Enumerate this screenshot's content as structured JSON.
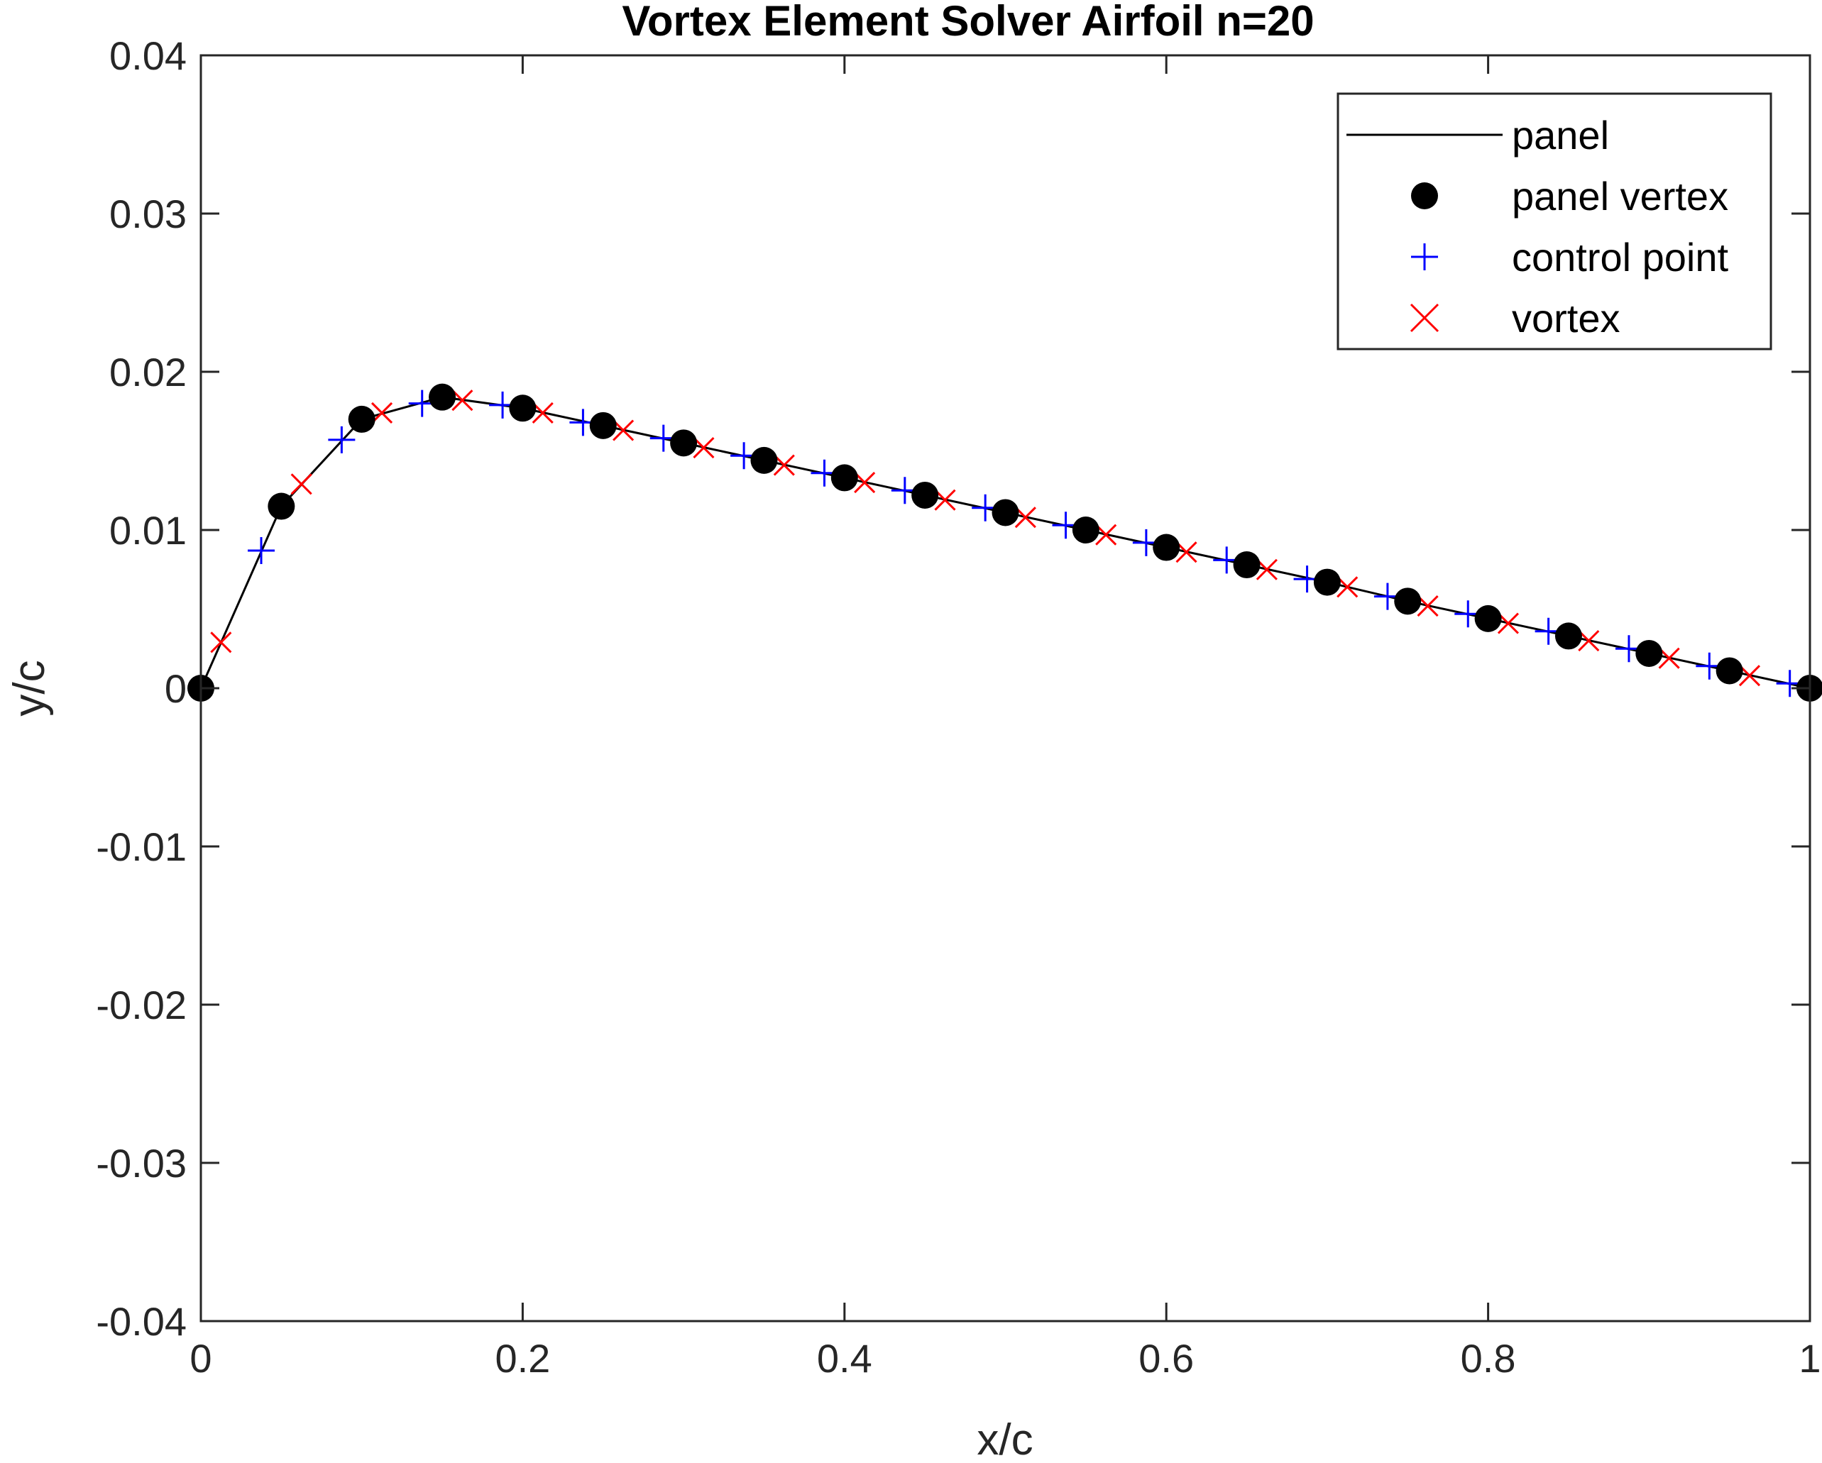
{
  "chart_data": {
    "type": "line",
    "title": "Vortex Element Solver Airfoil n=20",
    "xlabel": "x/c",
    "ylabel": "y/c",
    "xlim": [
      0,
      1
    ],
    "ylim": [
      -0.04,
      0.04
    ],
    "xticks": [
      0,
      0.2,
      0.4,
      0.6,
      0.8,
      1
    ],
    "xtick_labels": [
      "0",
      "0.2",
      "0.4",
      "0.6",
      "0.8",
      "1"
    ],
    "yticks": [
      0.04,
      0.03,
      0.02,
      0.01,
      0,
      -0.01,
      -0.02,
      -0.03,
      -0.04
    ],
    "ytick_labels": [
      "0.04",
      "0.03",
      "0.02",
      "0.01",
      "0",
      "-0.01",
      "-0.02",
      "-0.03",
      "-0.04"
    ],
    "grid": false,
    "legend_position": "top-right",
    "series": [
      {
        "name": "panel",
        "marker": "line",
        "color": "#000000",
        "x": [
          0,
          0.05,
          0.1,
          0.15,
          0.2,
          0.25,
          0.3,
          0.35,
          0.4,
          0.45,
          0.5,
          0.55,
          0.6,
          0.65,
          0.7,
          0.75,
          0.8,
          0.85,
          0.9,
          0.95,
          1.0
        ],
        "y": [
          0,
          0.0115,
          0.017,
          0.0184,
          0.0177,
          0.0166,
          0.0155,
          0.0144,
          0.0133,
          0.0122,
          0.0111,
          0.01,
          0.0089,
          0.0078,
          0.0067,
          0.0055,
          0.0044,
          0.0033,
          0.0022,
          0.0011,
          0
        ]
      },
      {
        "name": "panel vertex",
        "marker": "dot",
        "color": "#000000",
        "x": [
          0,
          0.05,
          0.1,
          0.15,
          0.2,
          0.25,
          0.3,
          0.35,
          0.4,
          0.45,
          0.5,
          0.55,
          0.6,
          0.65,
          0.7,
          0.75,
          0.8,
          0.85,
          0.9,
          0.95,
          1.0
        ],
        "y": [
          0,
          0.0115,
          0.017,
          0.0184,
          0.0177,
          0.0166,
          0.0155,
          0.0144,
          0.0133,
          0.0122,
          0.0111,
          0.01,
          0.0089,
          0.0078,
          0.0067,
          0.0055,
          0.0044,
          0.0033,
          0.0022,
          0.0011,
          0
        ]
      },
      {
        "name": "control point",
        "marker": "plus",
        "color": "#0000ff",
        "x": [
          0.0375,
          0.0875,
          0.1375,
          0.1875,
          0.2375,
          0.2875,
          0.3375,
          0.3875,
          0.4375,
          0.4875,
          0.5375,
          0.5875,
          0.6375,
          0.6875,
          0.7375,
          0.7875,
          0.8375,
          0.8875,
          0.9375,
          0.9875
        ],
        "y": [
          0.0087,
          0.0157,
          0.018,
          0.0179,
          0.0168,
          0.0158,
          0.0147,
          0.0136,
          0.0125,
          0.0114,
          0.0103,
          0.0092,
          0.0081,
          0.0069,
          0.0058,
          0.0047,
          0.0036,
          0.0025,
          0.0014,
          0.0003
        ]
      },
      {
        "name": "vortex",
        "marker": "x",
        "color": "#ff0000",
        "x": [
          0.0125,
          0.0625,
          0.1125,
          0.1625,
          0.2125,
          0.2625,
          0.3125,
          0.3625,
          0.4125,
          0.4625,
          0.5125,
          0.5625,
          0.6125,
          0.6625,
          0.7125,
          0.7625,
          0.8125,
          0.8625,
          0.9125,
          0.9625
        ],
        "y": [
          0.0029,
          0.0129,
          0.0174,
          0.0182,
          0.0174,
          0.0163,
          0.0152,
          0.0141,
          0.013,
          0.0119,
          0.0108,
          0.0097,
          0.0086,
          0.0075,
          0.0064,
          0.0052,
          0.0041,
          0.003,
          0.0019,
          0.0008
        ]
      }
    ]
  }
}
